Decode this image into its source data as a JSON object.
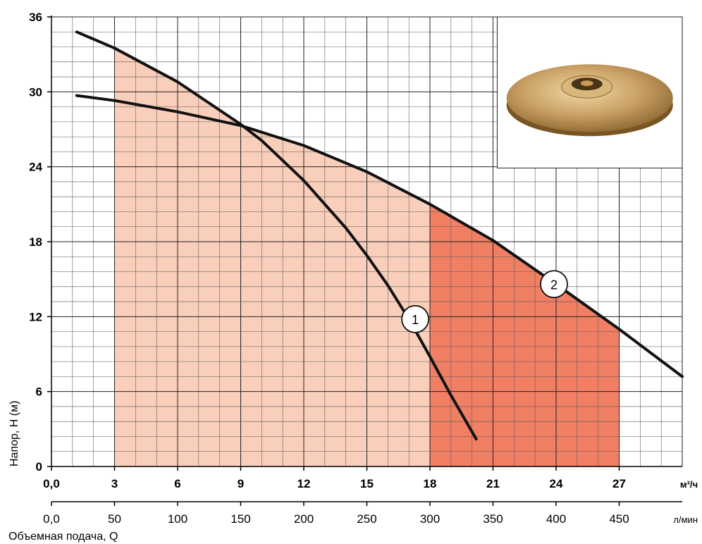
{
  "chart_data": {
    "type": "line",
    "x_primary_unit": "м³/ч",
    "x_secondary_unit": "л/мин",
    "ylabel": "Напор, Н (м)",
    "xlabel": "Объемная подача, Q",
    "xlim": [
      0,
      30
    ],
    "ylim": [
      0,
      36
    ],
    "grid": true,
    "x_ticks": [
      {
        "value": 0,
        "label": "0,0"
      },
      {
        "value": 3,
        "label": "3"
      },
      {
        "value": 6,
        "label": "6"
      },
      {
        "value": 9,
        "label": "9"
      },
      {
        "value": 12,
        "label": "12"
      },
      {
        "value": 15,
        "label": "15"
      },
      {
        "value": 18,
        "label": "18"
      },
      {
        "value": 21,
        "label": "21"
      },
      {
        "value": 24,
        "label": "24"
      },
      {
        "value": 27,
        "label": "27"
      }
    ],
    "x2_ticks": [
      {
        "value": 0,
        "label": "0,0"
      },
      {
        "value": 50,
        "label": "50"
      },
      {
        "value": 100,
        "label": "100"
      },
      {
        "value": 150,
        "label": "150"
      },
      {
        "value": 200,
        "label": "200"
      },
      {
        "value": 250,
        "label": "250"
      },
      {
        "value": 300,
        "label": "300"
      },
      {
        "value": 350,
        "label": "350"
      },
      {
        "value": 400,
        "label": "400"
      },
      {
        "value": 450,
        "label": "450"
      }
    ],
    "y_ticks": [
      {
        "value": 0,
        "label": "0"
      },
      {
        "value": 6,
        "label": "6"
      },
      {
        "value": 12,
        "label": "12"
      },
      {
        "value": 18,
        "label": "18"
      },
      {
        "value": 24,
        "label": "24"
      },
      {
        "value": 30,
        "label": "30"
      },
      {
        "value": 36,
        "label": "36"
      }
    ],
    "series": [
      {
        "name": "1",
        "x": [
          1.2,
          3,
          6,
          9,
          10,
          12,
          14,
          15,
          16,
          17,
          18,
          19,
          20.2
        ],
        "y": [
          34.8,
          33.5,
          30.8,
          27.4,
          26.1,
          22.9,
          19.1,
          16.9,
          14.5,
          11.8,
          8.8,
          5.7,
          2.2
        ]
      },
      {
        "name": "2",
        "x": [
          1.2,
          3,
          6,
          9,
          12,
          15,
          18,
          21,
          24,
          27,
          30
        ],
        "y": [
          29.7,
          29.3,
          28.4,
          27.3,
          25.7,
          23.6,
          21.0,
          18.1,
          14.6,
          11.0,
          7.2
        ]
      }
    ],
    "regions": [
      {
        "x_from": 3,
        "x_to": 18,
        "color": "#f9cfbc"
      },
      {
        "x_from": 18,
        "x_to": 27,
        "color": "#f07f64"
      }
    ],
    "curve_labels": [
      {
        "text": "1",
        "x": 17.3,
        "y": 11.8
      },
      {
        "text": "2",
        "x": 23.9,
        "y": 14.6
      }
    ]
  },
  "inset_image": {
    "name": "impeller-photo",
    "color": "#c9a063"
  }
}
